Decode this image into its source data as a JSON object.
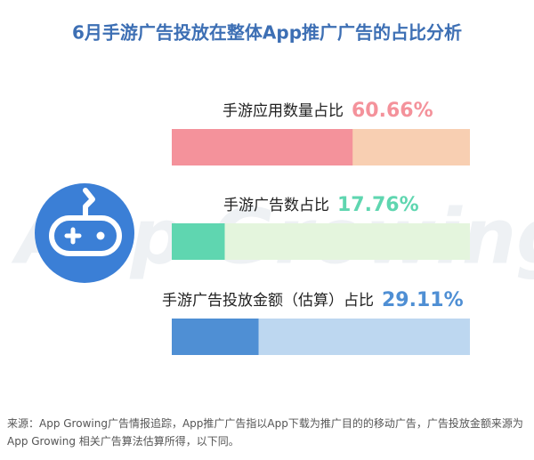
{
  "chart_data": {
    "type": "progress",
    "title": "6月手游广告投放在整体App推广广告的占比分析",
    "watermark": "App Growing",
    "xlim": [
      0,
      100
    ],
    "series": [
      {
        "name": "手游应用数量占比",
        "values": [
          60.66
        ],
        "value_labels": [
          "60.66%"
        ],
        "color": "#f4929b",
        "track_color": "#f8cfb2"
      },
      {
        "name": "手游广告数占比",
        "values": [
          17.76
        ],
        "value_labels": [
          "17.76%"
        ],
        "color": "#5fd6b0",
        "track_color": "#e4f5dd"
      },
      {
        "name": "手游广告投放金额（估算）占比",
        "values": [
          29.11
        ],
        "value_labels": [
          "29.11%"
        ],
        "color": "#4f8fd4",
        "track_color": "#bdd7f0"
      }
    ],
    "note": "来源：App Growing广告情报追踪，App推广广告指以App下载为推广目的的移动广告，广告投放金额来源为App Growing 相关广告算法估算所得，以下同。"
  }
}
